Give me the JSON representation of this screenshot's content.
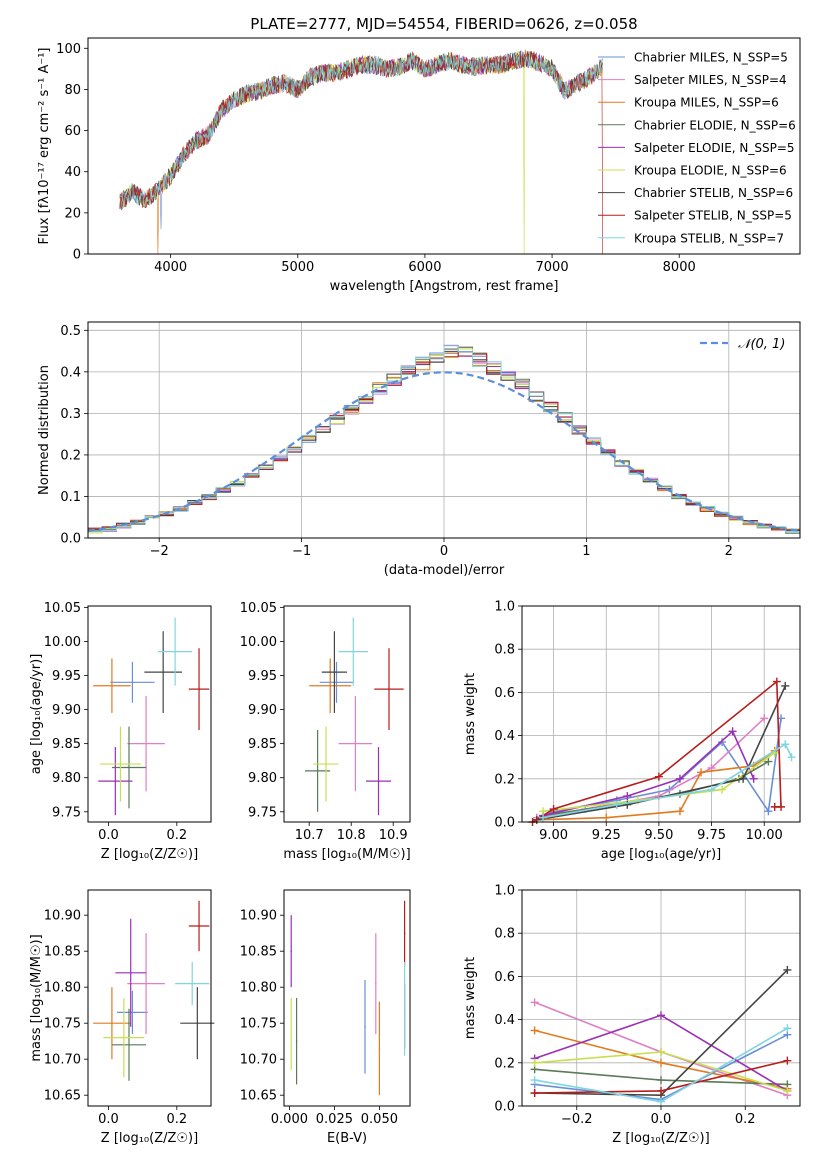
{
  "figure": {
    "title": "PLATE=2777, MJD=54554, FIBERID=0626, z=0.058"
  },
  "palette": {
    "Chabrier MILES": "#6a8fd8",
    "Salpeter MILES": "#e07fc3",
    "Kroupa MILES": "#e07b20",
    "Chabrier ELODIE": "#5a7a5a",
    "Salpeter ELODIE": "#9b2fb5",
    "Kroupa ELODIE": "#c8e050",
    "Chabrier STELIB": "#444444",
    "Salpeter STELIB": "#b81d1d",
    "Kroupa STELIB": "#7fd6e0"
  },
  "chart_data": [
    {
      "type": "line",
      "title": "PLATE=2777, MJD=54554, FIBERID=0626, z=0.058",
      "xlabel": "wavelength [Angstrom, rest frame]",
      "ylabel": "Flux [fλ10⁻¹⁷ erg cm⁻² s⁻¹ A⁻¹]",
      "xlim": [
        3350,
        8950
      ],
      "ylim": [
        0,
        105
      ],
      "xticks": [
        4000,
        5000,
        6000,
        7000,
        8000
      ],
      "yticks": [
        0,
        20,
        40,
        60,
        80,
        100
      ],
      "legend_position": "top-right",
      "spectrum": {
        "x": [
          3600,
          3700,
          3800,
          3900,
          4000,
          4100,
          4200,
          4300,
          4400,
          4500,
          4600,
          4700,
          4800,
          4900,
          5000,
          5100,
          5200,
          5300,
          5400,
          5500,
          5600,
          5700,
          5800,
          5900,
          6000,
          6100,
          6200,
          6300,
          6400,
          6500,
          6600,
          6700,
          6800,
          6900,
          7000,
          7100,
          7200,
          7300,
          7400
        ],
        "y": [
          25,
          30,
          26,
          31,
          38,
          48,
          55,
          58,
          70,
          75,
          78,
          79,
          82,
          83,
          80,
          86,
          88,
          88,
          90,
          92,
          92,
          90,
          91,
          94,
          90,
          92,
          94,
          92,
          91,
          92,
          92,
          94,
          95,
          93,
          90,
          79,
          83,
          86,
          92
        ]
      },
      "series": [
        {
          "name": "Chabrier MILES, N_SSP=5"
        },
        {
          "name": "Salpeter MILES, N_SSP=4"
        },
        {
          "name": "Kroupa MILES, N_SSP=6"
        },
        {
          "name": "Chabrier ELODIE, N_SSP=6"
        },
        {
          "name": "Salpeter ELODIE, N_SSP=5"
        },
        {
          "name": "Kroupa ELODIE, N_SSP=6"
        },
        {
          "name": "Chabrier STELIB, N_SSP=6"
        },
        {
          "name": "Salpeter STELIB, N_SSP=5"
        },
        {
          "name": "Kroupa STELIB, N_SSP=7"
        }
      ]
    },
    {
      "type": "bar",
      "xlabel": "(data-model)/error",
      "ylabel": "Normed distribution",
      "xlim": [
        -2.5,
        2.5
      ],
      "ylim": [
        0,
        0.52
      ],
      "xticks": [
        -2,
        -1,
        0,
        1,
        2
      ],
      "yticks": [
        0.0,
        0.1,
        0.2,
        0.3,
        0.4,
        0.5
      ],
      "grid": true,
      "legend_position": "top-right",
      "reference_curve": {
        "name": "𝒩(0, 1)",
        "mean": 0,
        "sigma": 1
      },
      "bin_width": 0.1,
      "histogram_heights": [
        0.018,
        0.022,
        0.03,
        0.038,
        0.048,
        0.058,
        0.07,
        0.085,
        0.098,
        0.115,
        0.13,
        0.15,
        0.17,
        0.19,
        0.215,
        0.24,
        0.26,
        0.285,
        0.31,
        0.335,
        0.36,
        0.38,
        0.4,
        0.42,
        0.435,
        0.45,
        0.445,
        0.43,
        0.41,
        0.39,
        0.37,
        0.34,
        0.315,
        0.29,
        0.26,
        0.235,
        0.21,
        0.18,
        0.16,
        0.14,
        0.12,
        0.1,
        0.085,
        0.07,
        0.058,
        0.047,
        0.038,
        0.03,
        0.022,
        0.017
      ]
    },
    {
      "type": "scatter",
      "xlabel": "Z [log₁₀(Z/Z☉)]",
      "ylabel": "age  [log₁₀(age/yr)]",
      "xlim": [
        -0.06,
        0.3
      ],
      "ylim": [
        9.735,
        10.052
      ],
      "xticks": [
        0.0,
        0.2
      ],
      "yticks": [
        9.75,
        9.8,
        9.85,
        9.9,
        9.95,
        10.0,
        10.05
      ],
      "points": [
        {
          "series": "Chabrier MILES",
          "x": 0.07,
          "y": 9.94,
          "xerr": 0.065,
          "yerr": 0.03
        },
        {
          "series": "Salpeter MILES",
          "x": 0.11,
          "y": 9.85,
          "xerr": 0.055,
          "yerr": 0.07
        },
        {
          "series": "Kroupa MILES",
          "x": 0.01,
          "y": 9.935,
          "xerr": 0.055,
          "yerr": 0.04
        },
        {
          "series": "Chabrier ELODIE",
          "x": 0.06,
          "y": 9.815,
          "xerr": 0.05,
          "yerr": 0.06
        },
        {
          "series": "Salpeter ELODIE",
          "x": 0.02,
          "y": 9.795,
          "xerr": 0.05,
          "yerr": 0.05
        },
        {
          "series": "Kroupa ELODIE",
          "x": 0.035,
          "y": 9.82,
          "xerr": 0.06,
          "yerr": 0.055
        },
        {
          "series": "Chabrier STELIB",
          "x": 0.16,
          "y": 9.955,
          "xerr": 0.055,
          "yerr": 0.06
        },
        {
          "series": "Salpeter STELIB",
          "x": 0.265,
          "y": 9.93,
          "xerr": 0.03,
          "yerr": 0.06
        },
        {
          "series": "Kroupa STELIB",
          "x": 0.195,
          "y": 9.985,
          "xerr": 0.05,
          "yerr": 0.05
        }
      ]
    },
    {
      "type": "scatter",
      "xlabel": "mass [log₁₀(M/M☉)]",
      "xlim": [
        10.64,
        10.94
      ],
      "ylim": [
        9.735,
        10.052
      ],
      "xticks": [
        10.7,
        10.8,
        10.9
      ],
      "yticks": [
        9.75,
        9.8,
        9.85,
        9.9,
        9.95,
        10.0,
        10.05
      ],
      "points": [
        {
          "series": "Chabrier MILES",
          "x": 10.765,
          "y": 9.94,
          "xerr": 0.04,
          "yerr": 0.03
        },
        {
          "series": "Salpeter MILES",
          "x": 10.81,
          "y": 9.85,
          "xerr": 0.04,
          "yerr": 0.07
        },
        {
          "series": "Kroupa MILES",
          "x": 10.75,
          "y": 9.935,
          "xerr": 0.05,
          "yerr": 0.04
        },
        {
          "series": "Chabrier ELODIE",
          "x": 10.72,
          "y": 9.81,
          "xerr": 0.03,
          "yerr": 0.06
        },
        {
          "series": "Salpeter ELODIE",
          "x": 10.865,
          "y": 9.795,
          "xerr": 0.03,
          "yerr": 0.05
        },
        {
          "series": "Kroupa ELODIE",
          "x": 10.74,
          "y": 9.82,
          "xerr": 0.03,
          "yerr": 0.055
        },
        {
          "series": "Chabrier STELIB",
          "x": 10.76,
          "y": 9.955,
          "xerr": 0.03,
          "yerr": 0.06
        },
        {
          "series": "Salpeter STELIB",
          "x": 10.89,
          "y": 9.93,
          "xerr": 0.035,
          "yerr": 0.06
        },
        {
          "series": "Kroupa STELIB",
          "x": 10.805,
          "y": 9.985,
          "xerr": 0.035,
          "yerr": 0.05
        }
      ]
    },
    {
      "type": "line",
      "xlabel": "age  [log₁₀(age/yr)]",
      "ylabel": "mass weight",
      "xlim": [
        8.85,
        10.17
      ],
      "ylim": [
        0,
        1.0
      ],
      "xticks": [
        9.0,
        9.25,
        9.5,
        9.75,
        10.0
      ],
      "yticks": [
        0.0,
        0.2,
        0.4,
        0.6,
        0.8,
        1.0
      ],
      "grid": true,
      "lines": [
        {
          "series": "Chabrier MILES",
          "x": [
            8.92,
            9.0,
            9.3,
            9.55,
            9.8,
            10.02,
            10.08
          ],
          "y": [
            0.01,
            0.05,
            0.1,
            0.15,
            0.37,
            0.05,
            0.48
          ]
        },
        {
          "series": "Salpeter MILES",
          "x": [
            8.92,
            9.15,
            9.5,
            9.75,
            10.0
          ],
          "y": [
            0.02,
            0.06,
            0.12,
            0.25,
            0.48
          ]
        },
        {
          "series": "Kroupa MILES",
          "x": [
            8.92,
            9.25,
            9.6,
            9.7,
            9.95,
            10.05
          ],
          "y": [
            0.01,
            0.02,
            0.05,
            0.23,
            0.26,
            0.33
          ]
        },
        {
          "series": "Chabrier ELODIE",
          "x": [
            8.95,
            9.3,
            9.6,
            9.88,
            10.02
          ],
          "y": [
            0.03,
            0.08,
            0.13,
            0.2,
            0.28
          ]
        },
        {
          "series": "Salpeter ELODIE",
          "x": [
            8.95,
            9.35,
            9.6,
            9.85,
            9.95
          ],
          "y": [
            0.03,
            0.12,
            0.2,
            0.42,
            0.2
          ]
        },
        {
          "series": "Kroupa ELODIE",
          "x": [
            8.95,
            9.4,
            9.8,
            10.05
          ],
          "y": [
            0.05,
            0.1,
            0.15,
            0.32
          ]
        },
        {
          "series": "Chabrier STELIB",
          "x": [
            8.92,
            9.35,
            9.9,
            10.1
          ],
          "y": [
            0.01,
            0.08,
            0.2,
            0.63
          ]
        },
        {
          "series": "Salpeter STELIB",
          "x": [
            8.9,
            9.0,
            9.5,
            10.06,
            10.08,
            10.05
          ],
          "y": [
            0.0,
            0.06,
            0.21,
            0.65,
            0.07,
            0.07
          ]
        },
        {
          "series": "Kroupa STELIB",
          "x": [
            8.95,
            9.3,
            9.75,
            10.1,
            10.13
          ],
          "y": [
            0.02,
            0.08,
            0.15,
            0.36,
            0.3
          ]
        }
      ]
    },
    {
      "type": "scatter",
      "xlabel": "Z [log₁₀(Z/Z☉)]",
      "ylabel": "mass [log₁₀(M/M☉)]",
      "xlim": [
        -0.06,
        0.3
      ],
      "ylim": [
        10.635,
        10.935
      ],
      "xticks": [
        0.0,
        0.2
      ],
      "yticks": [
        10.65,
        10.7,
        10.75,
        10.8,
        10.85,
        10.9
      ],
      "points": [
        {
          "series": "Chabrier MILES",
          "x": 0.07,
          "y": 10.765,
          "xerr": 0.045,
          "yerr": 0.03
        },
        {
          "series": "Salpeter MILES",
          "x": 0.11,
          "y": 10.805,
          "xerr": 0.055,
          "yerr": 0.07
        },
        {
          "series": "Kroupa MILES",
          "x": 0.01,
          "y": 10.75,
          "xerr": 0.055,
          "yerr": 0.05
        },
        {
          "series": "Chabrier ELODIE",
          "x": 0.06,
          "y": 10.72,
          "xerr": 0.05,
          "yerr": 0.05
        },
        {
          "series": "Salpeter ELODIE",
          "x": 0.065,
          "y": 10.82,
          "xerr": 0.045,
          "yerr": 0.075
        },
        {
          "series": "Kroupa ELODIE",
          "x": 0.045,
          "y": 10.73,
          "xerr": 0.06,
          "yerr": 0.055
        },
        {
          "series": "Chabrier STELIB",
          "x": 0.26,
          "y": 10.75,
          "xerr": 0.05,
          "yerr": 0.05
        },
        {
          "series": "Salpeter STELIB",
          "x": 0.265,
          "y": 10.885,
          "xerr": 0.03,
          "yerr": 0.035
        },
        {
          "series": "Kroupa STELIB",
          "x": 0.245,
          "y": 10.805,
          "xerr": 0.05,
          "yerr": 0.03
        }
      ]
    },
    {
      "type": "scatter",
      "xlabel": "E(B-V)",
      "xlim": [
        -0.003,
        0.067
      ],
      "ylim": [
        10.635,
        10.935
      ],
      "xticks": [
        0.0,
        0.025,
        0.05
      ],
      "yticks": [
        10.65,
        10.7,
        10.75,
        10.8,
        10.85,
        10.9
      ],
      "points": [
        {
          "series": "Chabrier MILES",
          "x": 0.042,
          "y": 10.745,
          "yerr": 0.065
        },
        {
          "series": "Salpeter MILES",
          "x": 0.048,
          "y": 10.805,
          "yerr": 0.07
        },
        {
          "series": "Kroupa MILES",
          "x": 0.05,
          "y": 10.715,
          "yerr": 0.065
        },
        {
          "series": "Chabrier ELODIE",
          "x": 0.004,
          "y": 10.725,
          "yerr": 0.06
        },
        {
          "series": "Salpeter ELODIE",
          "x": 0.001,
          "y": 10.85,
          "yerr": 0.05
        },
        {
          "series": "Kroupa ELODIE",
          "x": 0.001,
          "y": 10.735,
          "yerr": 0.05
        },
        {
          "series": "Chabrier STELIB",
          "x": 0.064,
          "y": 10.76,
          "yerr": 0.045
        },
        {
          "series": "Salpeter STELIB",
          "x": 0.064,
          "y": 10.875,
          "yerr": 0.045
        },
        {
          "series": "Kroupa STELIB",
          "x": 0.064,
          "y": 10.77,
          "yerr": 0.065
        }
      ]
    },
    {
      "type": "line",
      "xlabel": "Z [log₁₀(Z/Z☉)]",
      "ylabel": "mass weight",
      "xlim": [
        -0.33,
        0.33
      ],
      "ylim": [
        0,
        1.0
      ],
      "xticks": [
        -0.2,
        0.0,
        0.2
      ],
      "yticks": [
        0.0,
        0.2,
        0.4,
        0.6,
        0.8,
        1.0
      ],
      "grid": true,
      "lines": [
        {
          "series": "Chabrier MILES",
          "x": [
            -0.3,
            0.0,
            0.3
          ],
          "y": [
            0.1,
            0.03,
            0.33
          ]
        },
        {
          "series": "Salpeter MILES",
          "x": [
            -0.3,
            0.0,
            0.3
          ],
          "y": [
            0.48,
            0.25,
            0.05
          ]
        },
        {
          "series": "Kroupa MILES",
          "x": [
            -0.3,
            0.0,
            0.3
          ],
          "y": [
            0.35,
            0.2,
            0.08
          ]
        },
        {
          "series": "Chabrier ELODIE",
          "x": [
            -0.3,
            0.0,
            0.3
          ],
          "y": [
            0.17,
            0.12,
            0.1
          ]
        },
        {
          "series": "Salpeter ELODIE",
          "x": [
            -0.3,
            0.0,
            0.3
          ],
          "y": [
            0.22,
            0.42,
            0.07
          ]
        },
        {
          "series": "Kroupa ELODIE",
          "x": [
            -0.3,
            0.0,
            0.3
          ],
          "y": [
            0.2,
            0.25,
            0.07
          ]
        },
        {
          "series": "Chabrier STELIB",
          "x": [
            -0.3,
            0.0,
            0.3
          ],
          "y": [
            0.06,
            0.05,
            0.63
          ]
        },
        {
          "series": "Salpeter STELIB",
          "x": [
            -0.3,
            0.0,
            0.3
          ],
          "y": [
            0.06,
            0.07,
            0.21
          ]
        },
        {
          "series": "Kroupa STELIB",
          "x": [
            -0.3,
            0.0,
            0.3
          ],
          "y": [
            0.12,
            0.02,
            0.36
          ]
        }
      ]
    }
  ]
}
